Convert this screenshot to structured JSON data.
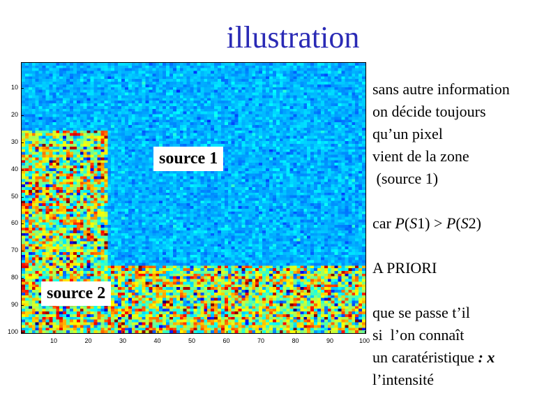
{
  "slide": {
    "title": "illustration",
    "label_source1": "source 1",
    "label_source2": "source 2"
  },
  "text": {
    "line1": "sans autre information",
    "line2": "on décide toujours",
    "line3": "qu’un pixel",
    "line4": "vient de la zone",
    "line5": " (source 1)",
    "line6_a": "car ",
    "line6_b": "P",
    "line6_c": "(",
    "line6_d": "S",
    "line6_e": "1) > ",
    "line6_f": "P",
    "line6_g": "(",
    "line6_h": "S",
    "line6_i": "2)",
    "line7": "A PRIORI",
    "line8": "que se passe t’il",
    "line9": "si  l’on connaît",
    "line10_a": "un caratéristique ",
    "line10_b": ": x",
    "line11": "l’intensité"
  },
  "chart_data": {
    "type": "heatmap",
    "grid_size": [
      100,
      100
    ],
    "xlim": [
      1,
      100
    ],
    "ylim": [
      1,
      100
    ],
    "x_ticks": [
      "10",
      "20",
      "30",
      "40",
      "50",
      "60",
      "70",
      "80",
      "90",
      "100"
    ],
    "y_ticks": [
      "10",
      "20",
      "30",
      "40",
      "50",
      "60",
      "70",
      "80",
      "90",
      "100"
    ],
    "regions": [
      {
        "name": "source 1",
        "description": "low intensity, blue",
        "cols": [
          1,
          100
        ],
        "rows": [
          1,
          75
        ]
      },
      {
        "name": "source 2",
        "description": "high variance, jet colors",
        "cols": [
          1,
          25
        ],
        "rows": [
          26,
          100
        ]
      },
      {
        "name": "source 2",
        "description": "high variance, jet colors",
        "cols": [
          1,
          100
        ],
        "rows": [
          76,
          100
        ]
      }
    ],
    "colormap": "jet",
    "colors": {
      "title": "#2a2ab5"
    }
  }
}
